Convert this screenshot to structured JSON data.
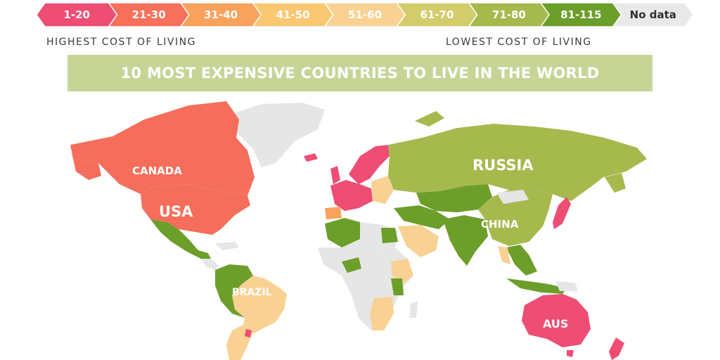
{
  "title": "10 MOST EXPENSIVE COUNTRIES TO LIVE IN THE WORLD",
  "legend": [
    {
      "label": "1-20",
      "color": "#ee4d74"
    },
    {
      "label": "21-30",
      "color": "#f7705a"
    },
    {
      "label": "31-40",
      "color": "#f9a25c"
    },
    {
      "label": "41-50",
      "color": "#fac772"
    },
    {
      "label": "51-60",
      "color": "#f8d193"
    },
    {
      "label": "61-70",
      "color": "#d2cc6a"
    },
    {
      "label": "71-80",
      "color": "#a6b94d"
    },
    {
      "label": "81-115",
      "color": "#6c9e2a"
    },
    {
      "label": "No data",
      "color": "#e9e9e9"
    }
  ],
  "scale_labels": {
    "highest": "HIGHEST COST OF LIVING",
    "lowest": "LOWEST COST OF LIVING"
  },
  "map_labels": {
    "canada": "CANADA",
    "usa": "USA",
    "russia": "RUSSIA",
    "china": "CHINA",
    "brazil": "BRAZIL",
    "australia": "AUS"
  }
}
